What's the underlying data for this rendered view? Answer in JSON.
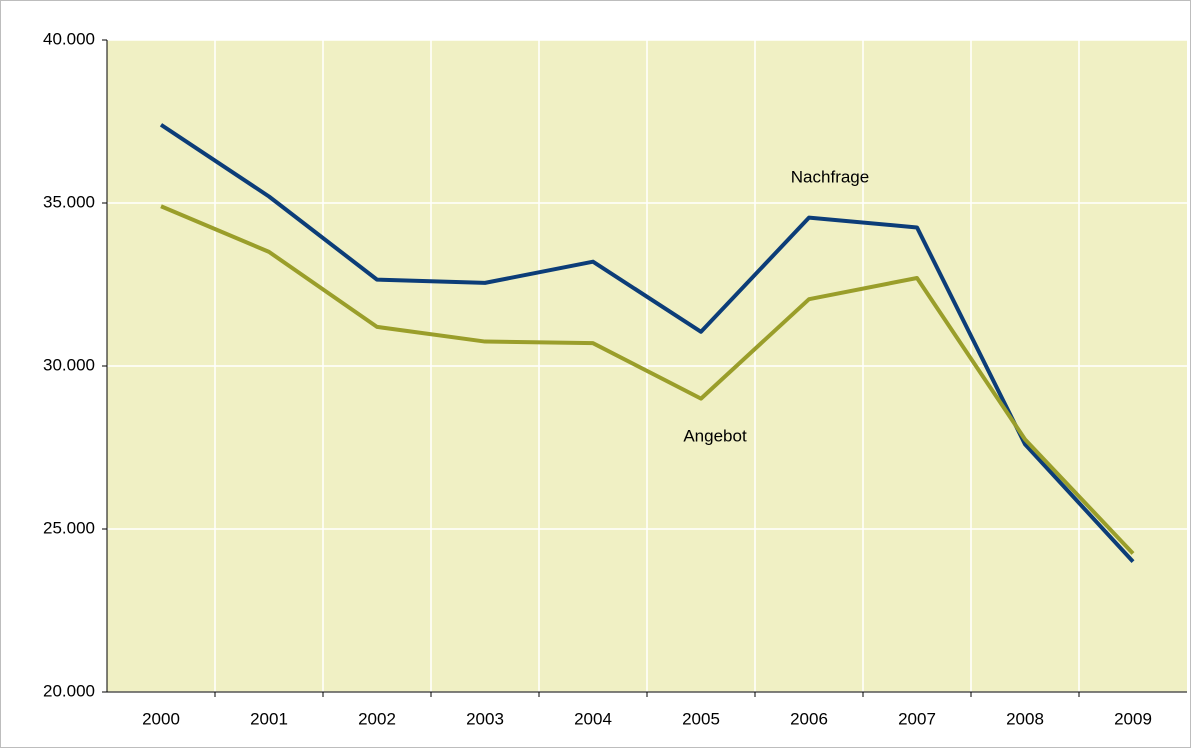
{
  "chart_data": {
    "type": "line",
    "categories": [
      "2000",
      "2001",
      "2002",
      "2003",
      "2004",
      "2005",
      "2006",
      "2007",
      "2008",
      "2009"
    ],
    "series": [
      {
        "name": "Nachfrage",
        "color": "#0c3d78",
        "values": [
          37400,
          35200,
          32650,
          32550,
          33200,
          31050,
          34550,
          34250,
          27600,
          24000
        ]
      },
      {
        "name": "Angebot",
        "color": "#9a9e2a",
        "values": [
          34900,
          33500,
          31200,
          30750,
          30700,
          29000,
          32050,
          32700,
          27750,
          24250
        ]
      }
    ],
    "ylim": [
      20000,
      40000
    ],
    "yticks": [
      {
        "value": 20000,
        "label": "20.000"
      },
      {
        "value": 25000,
        "label": "25.000"
      },
      {
        "value": 30000,
        "label": "30.000"
      },
      {
        "value": 35000,
        "label": "35.000"
      },
      {
        "value": 40000,
        "label": "40.000"
      }
    ],
    "grid": true,
    "plot_background": "#f0f0c4"
  }
}
